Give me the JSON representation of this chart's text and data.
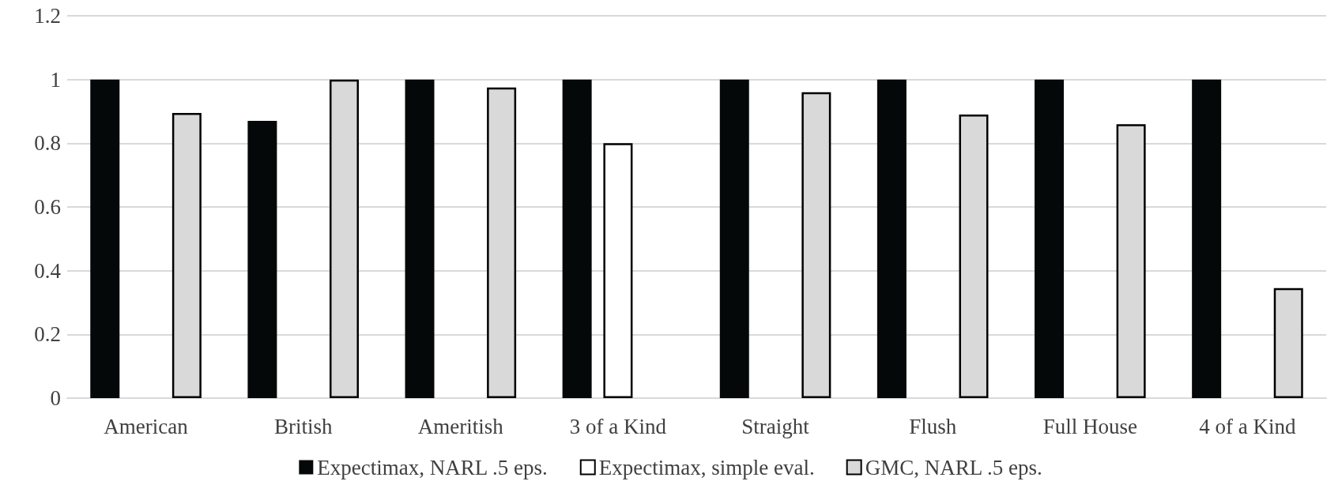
{
  "chart_data": {
    "type": "bar",
    "categories": [
      "American",
      "British",
      "Ameritish",
      "3 of a Kind",
      "Straight",
      "Flush",
      "Full House",
      "4 of a Kind"
    ],
    "series": [
      {
        "name": "Expectimax, NARL .5 eps.",
        "color": "#040808",
        "values": [
          1,
          0.87,
          1,
          1,
          1,
          1,
          1,
          1
        ]
      },
      {
        "name": "Expectimax, simple eval.",
        "color": "#ffffff",
        "values": [
          null,
          null,
          null,
          0.8,
          null,
          null,
          null,
          null
        ]
      },
      {
        "name": "GMC, NARL .5 eps.",
        "color": "#d9d9d9",
        "values": [
          0.895,
          1,
          0.975,
          null,
          0.96,
          0.89,
          0.86,
          0.345
        ]
      }
    ],
    "ylim": [
      0,
      1.2
    ],
    "yticks": [
      0,
      0.2,
      0.4,
      0.6,
      0.8,
      1,
      1.2
    ],
    "grid": "y",
    "legend": "bottom"
  }
}
